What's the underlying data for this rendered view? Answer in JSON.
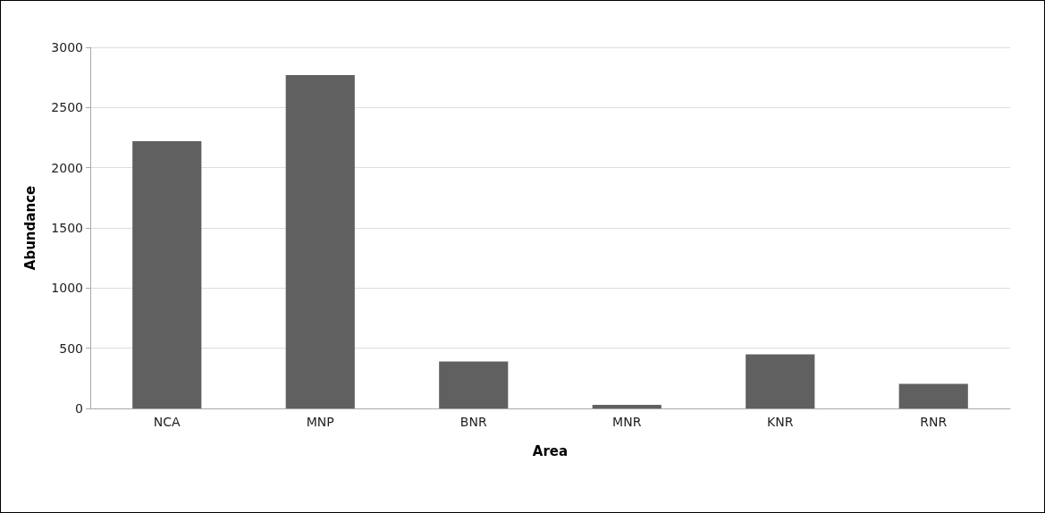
{
  "chart_data": {
    "type": "bar",
    "xlabel": "Area",
    "ylabel": "Abundance",
    "categories": [
      "NCA",
      "MNP",
      "BNR",
      "MNR",
      "KNR",
      "RNR"
    ],
    "values": [
      2220,
      2770,
      390,
      30,
      450,
      205
    ],
    "color": "#606060",
    "ylim": [
      0,
      3000
    ],
    "yticks": [
      0,
      500,
      1000,
      1500,
      2000,
      2500,
      3000
    ],
    "grid": "y"
  }
}
